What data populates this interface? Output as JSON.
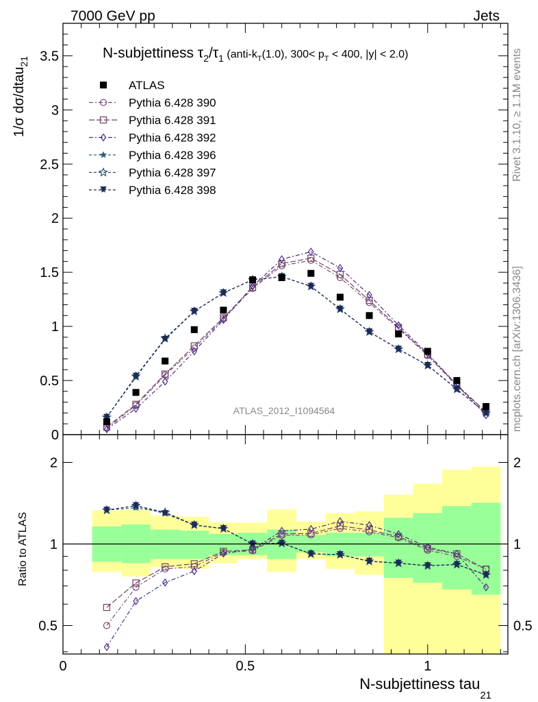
{
  "header": {
    "left": "7000 GeV pp",
    "right": "Jets"
  },
  "side": {
    "rivet": "Rivet 3.1.10, ≥ 1.1M events",
    "mcplots": "mcplots.cern.ch [arXiv:1306.3436]"
  },
  "title": {
    "main": "N-subjettiness τ",
    "sub2": "2",
    "slash": "/τ",
    "sub1": "1",
    "cut_a": " (anti-k",
    "cut_t": "T",
    "cut_b": "(1.0), 300< p",
    "cut_t2": "T",
    "cut_c": " < 400, |y| < 2.0)"
  },
  "watermark": "ATLAS_2012_I1094564",
  "axes": {
    "ylabel_main": "1/σ dσ/dtau",
    "ylabel_main_sub": "21",
    "ylabel_ratio": "Ratio to ATLAS",
    "xlabel": "N-subjettiness tau",
    "xlabel_sub": "21"
  },
  "chart_data": {
    "type": "scatter",
    "x": [
      0.12,
      0.2,
      0.28,
      0.36,
      0.44,
      0.52,
      0.6,
      0.68,
      0.76,
      0.84,
      0.92,
      1.0,
      1.08,
      1.16
    ],
    "bin_edges": [
      0.08,
      0.16,
      0.24,
      0.32,
      0.4,
      0.48,
      0.56,
      0.64,
      0.72,
      0.8,
      0.88,
      0.96,
      1.04,
      1.12,
      1.2
    ],
    "xlim": [
      0,
      1.22
    ],
    "main": {
      "ylim": [
        0,
        3.8
      ],
      "yticks": [
        "0",
        "0.5",
        "1",
        "1.5",
        "2",
        "2.5",
        "3",
        "3.5"
      ],
      "xticks": [
        "0",
        "0.5",
        "1"
      ]
    },
    "ratio": {
      "ylim": [
        0.35,
        2.3
      ],
      "yticks": [
        "0.5",
        "1",
        "2"
      ]
    },
    "legend_position": "top-left",
    "data": {
      "name": "ATLAS",
      "values": [
        0.12,
        0.39,
        0.68,
        0.97,
        1.15,
        1.43,
        1.45,
        1.49,
        1.27,
        1.1,
        0.93,
        0.77,
        0.5,
        0.26
      ]
    },
    "band_inner": [
      [
        0.86,
        1.16
      ],
      [
        0.85,
        1.18
      ],
      [
        0.88,
        1.13
      ],
      [
        0.88,
        1.12
      ],
      [
        0.91,
        1.09
      ],
      [
        0.91,
        1.1
      ],
      [
        0.88,
        1.13
      ],
      [
        0.93,
        1.08
      ],
      [
        0.9,
        1.1
      ],
      [
        0.9,
        1.1
      ],
      [
        0.75,
        1.25
      ],
      [
        0.72,
        1.3
      ],
      [
        0.68,
        1.38
      ],
      [
        0.65,
        1.42
      ]
    ],
    "band_outer": [
      [
        0.79,
        1.33
      ],
      [
        0.76,
        1.34
      ],
      [
        0.82,
        1.27
      ],
      [
        0.81,
        1.26
      ],
      [
        0.85,
        1.2
      ],
      [
        0.88,
        1.2
      ],
      [
        0.79,
        1.34
      ],
      [
        0.88,
        1.21
      ],
      [
        0.81,
        1.3
      ],
      [
        0.77,
        1.32
      ],
      [
        0.35,
        1.52
      ],
      [
        0.35,
        1.67
      ],
      [
        0.35,
        1.88
      ],
      [
        0.35,
        1.93
      ]
    ],
    "series": [
      {
        "name": "Pythia 6.428 390",
        "color": "#7b4a7b",
        "dash": "6,3,2,3",
        "marker": "circle-open",
        "values": [
          0.06,
          0.27,
          0.55,
          0.8,
          1.07,
          1.35,
          1.56,
          1.61,
          1.45,
          1.22,
          0.98,
          0.73,
          0.45,
          0.21
        ]
      },
      {
        "name": "Pythia 6.428 391",
        "color": "#6e4060",
        "dash": "8,3",
        "marker": "square-open",
        "values": [
          0.07,
          0.28,
          0.56,
          0.82,
          1.08,
          1.36,
          1.58,
          1.63,
          1.48,
          1.24,
          0.99,
          0.74,
          0.46,
          0.21
        ]
      },
      {
        "name": "Pythia 6.428 392",
        "color": "#4b2a8a",
        "dash": "6,3,2,3",
        "marker": "diamond-open",
        "values": [
          0.05,
          0.24,
          0.49,
          0.77,
          1.06,
          1.37,
          1.62,
          1.69,
          1.54,
          1.29,
          1.01,
          0.75,
          0.46,
          0.18
        ]
      },
      {
        "name": "Pythia 6.428 396",
        "color": "#2f5f78",
        "dash": "4,3",
        "marker": "star-filled",
        "values": [
          0.16,
          0.53,
          0.89,
          1.14,
          1.31,
          1.43,
          1.46,
          1.37,
          1.16,
          0.95,
          0.79,
          0.64,
          0.42,
          0.2
        ]
      },
      {
        "name": "Pythia 6.428 397",
        "color": "#2a4a6a",
        "dash": "4,3",
        "marker": "star-open",
        "values": [
          0.16,
          0.54,
          0.89,
          1.14,
          1.31,
          1.43,
          1.46,
          1.37,
          1.16,
          0.95,
          0.79,
          0.64,
          0.42,
          0.2
        ]
      },
      {
        "name": "Pythia 6.428 398",
        "color": "#1c2a55",
        "dash": "4,3",
        "marker": "tri-down-filled",
        "values": [
          0.16,
          0.54,
          0.88,
          1.14,
          1.31,
          1.43,
          1.46,
          1.37,
          1.16,
          0.95,
          0.79,
          0.64,
          0.42,
          0.2
        ]
      }
    ]
  }
}
